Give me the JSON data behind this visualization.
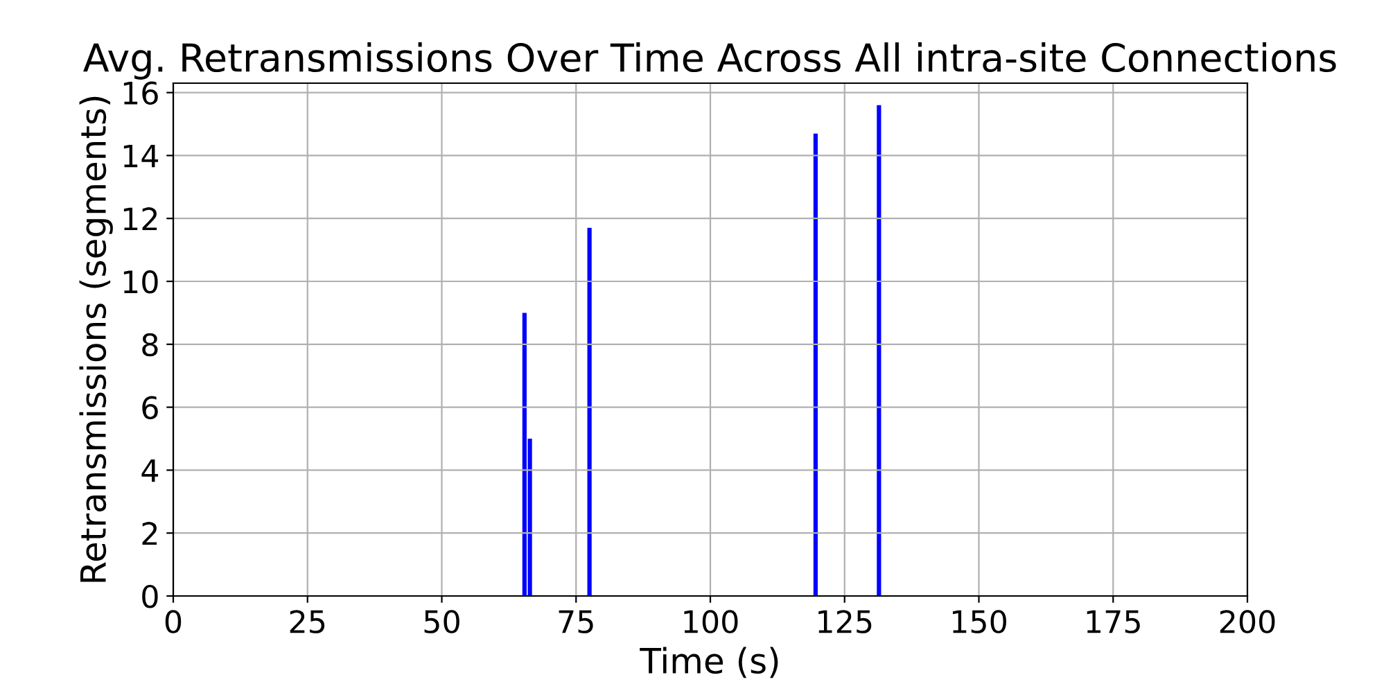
{
  "chart_data": {
    "type": "bar",
    "title": "Avg. Retransmissions Over Time Across All intra-site Connections",
    "xlabel": "Time (s)",
    "ylabel": "Retransmissions (segments)",
    "x": [
      65.4,
      66.4,
      77.5,
      119.6,
      131.4
    ],
    "series": [
      {
        "color": "#0000ff",
        "values": [
          9,
          5,
          11.7,
          14.7,
          15.6
        ]
      }
    ],
    "xlim": [
      0,
      200
    ],
    "xticks": [
      0,
      25,
      50,
      75,
      100,
      125,
      150,
      175,
      200
    ],
    "ylim": [
      0,
      16.3
    ],
    "yticks": [
      0,
      2,
      4,
      6,
      8,
      10,
      12,
      14,
      16
    ],
    "grid": true
  }
}
